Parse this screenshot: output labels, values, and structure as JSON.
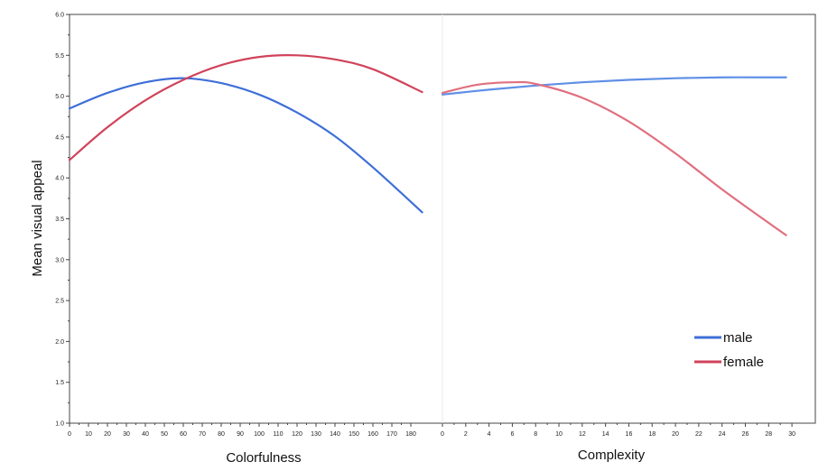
{
  "chart_data": {
    "type": "line",
    "ylabel": "Mean visual appeal",
    "ylim": [
      1.0,
      6.0
    ],
    "yticks": [
      "1.0",
      "1.5",
      "2.0",
      "2.5",
      "3.0",
      "3.5",
      "4.0",
      "4.5",
      "5.0",
      "5.5",
      "6.0"
    ],
    "grid": false,
    "legend": {
      "placement": "bottom-right",
      "entries": [
        {
          "label": "male",
          "color": "#3f6fd8"
        },
        {
          "label": "female",
          "color": "#d0435a"
        }
      ]
    },
    "panels": [
      {
        "xlabel": "Colorfulness",
        "xlim": [
          0,
          190
        ],
        "xticks": [
          "0",
          "10",
          "20",
          "30",
          "40",
          "50",
          "60",
          "70",
          "80",
          "90",
          "100",
          "110",
          "120",
          "130",
          "140",
          "150",
          "160",
          "170",
          "180"
        ],
        "series": [
          {
            "name": "male",
            "color": "#3f6fd8",
            "x": [
              0,
              20,
              40,
              60,
              80,
              100,
              120,
              140,
              160,
              186
            ],
            "y": [
              4.85,
              5.04,
              5.17,
              5.22,
              5.16,
              5.02,
              4.8,
              4.51,
              4.13,
              3.58
            ]
          },
          {
            "name": "female",
            "color": "#d0435a",
            "x": [
              0,
              20,
              40,
              60,
              80,
              100,
              120,
              140,
              160,
              186
            ],
            "y": [
              4.22,
              4.62,
              4.95,
              5.2,
              5.38,
              5.48,
              5.5,
              5.45,
              5.33,
              5.05
            ]
          }
        ]
      },
      {
        "xlabel": "Complexity",
        "xlim": [
          0,
          31
        ],
        "xticks": [
          "0",
          "2",
          "4",
          "6",
          "8",
          "10",
          "12",
          "14",
          "16",
          "18",
          "20",
          "22",
          "24",
          "26",
          "28",
          "30"
        ],
        "series": [
          {
            "name": "male",
            "color": "#5f8fe6",
            "x": [
              0,
              4,
              8,
              12,
              16,
              20,
              24,
              28,
              29.5
            ],
            "y": [
              5.02,
              5.08,
              5.13,
              5.17,
              5.2,
              5.22,
              5.23,
              5.23,
              5.23
            ]
          },
          {
            "name": "female",
            "color": "#e0707f",
            "x": [
              0,
              3,
              6,
              8,
              12,
              16,
              20,
              24,
              28,
              29.5
            ],
            "y": [
              5.04,
              5.14,
              5.17,
              5.15,
              4.98,
              4.69,
              4.3,
              3.86,
              3.45,
              3.3
            ]
          }
        ]
      }
    ]
  }
}
